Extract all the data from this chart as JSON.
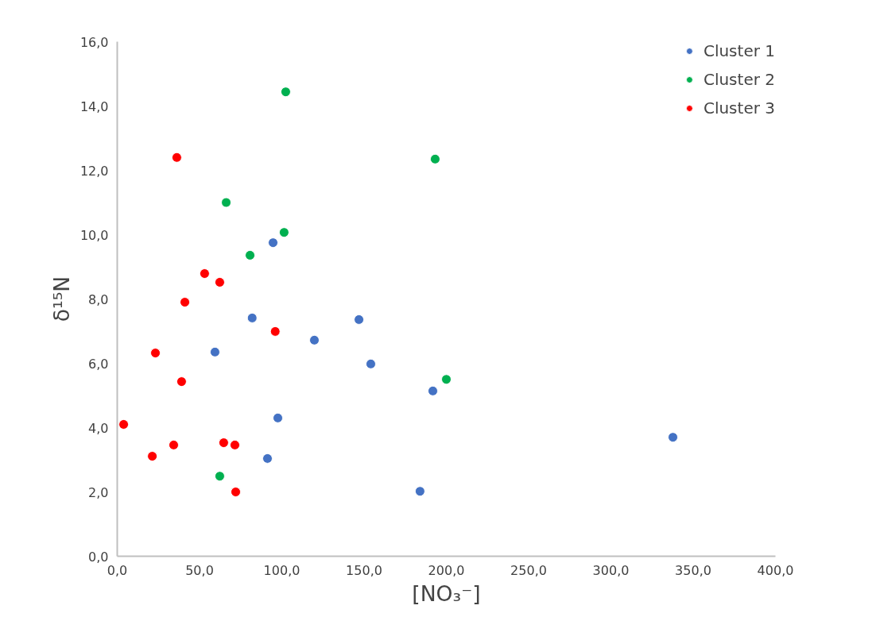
{
  "chart_data": {
    "type": "scatter",
    "xlabel": "[NO₃⁻]",
    "ylabel": "δ¹⁵N",
    "xlim": [
      0,
      400
    ],
    "ylim": [
      0,
      16
    ],
    "xticks": [
      {
        "value": 0,
        "label": "0,0"
      },
      {
        "value": 50,
        "label": "50,0"
      },
      {
        "value": 100,
        "label": "100,0"
      },
      {
        "value": 150,
        "label": "150,0"
      },
      {
        "value": 200,
        "label": "200,0"
      },
      {
        "value": 250,
        "label": "250,0"
      },
      {
        "value": 300,
        "label": "300,0"
      },
      {
        "value": 350,
        "label": "350,0"
      },
      {
        "value": 400,
        "label": "400,0"
      }
    ],
    "yticks": [
      {
        "value": 0,
        "label": "0,0"
      },
      {
        "value": 2,
        "label": "2,0"
      },
      {
        "value": 4,
        "label": "4,0"
      },
      {
        "value": 6,
        "label": "6,0"
      },
      {
        "value": 8,
        "label": "8,0"
      },
      {
        "value": 10,
        "label": "10,0"
      },
      {
        "value": 12,
        "label": "12,0"
      },
      {
        "value": 14,
        "label": "14,0"
      },
      {
        "value": 16,
        "label": "16,0"
      }
    ],
    "grid": false,
    "legend": "top right",
    "marker": "circle",
    "series": [
      {
        "name": "Cluster 1",
        "color": "#4472c4",
        "x": [
          94.7,
          82.0,
          59.4,
          119.8,
          146.9,
          154.1,
          191.8,
          97.6,
          91.3,
          184.0,
          337.7
        ],
        "values": [
          9.75,
          7.41,
          6.35,
          6.72,
          7.36,
          5.98,
          5.14,
          4.3,
          3.04,
          2.02,
          3.7
        ]
      },
      {
        "name": "Cluster 2",
        "color": "#00b050",
        "x": [
          102.4,
          193.2,
          66.2,
          101.4,
          80.7,
          200.0,
          62.3
        ],
        "values": [
          14.44,
          12.35,
          11.0,
          10.07,
          9.36,
          5.5,
          2.49
        ]
      },
      {
        "name": "Cluster 3",
        "color": "#ff0000",
        "x": [
          36.2,
          53.1,
          62.3,
          41.1,
          96.0,
          23.2,
          39.1,
          3.9,
          34.3,
          21.3,
          64.7,
          71.5,
          72.0
        ],
        "values": [
          12.4,
          8.79,
          8.52,
          7.9,
          6.99,
          6.32,
          5.43,
          4.1,
          3.46,
          3.11,
          3.53,
          3.46,
          2.0
        ]
      }
    ]
  }
}
